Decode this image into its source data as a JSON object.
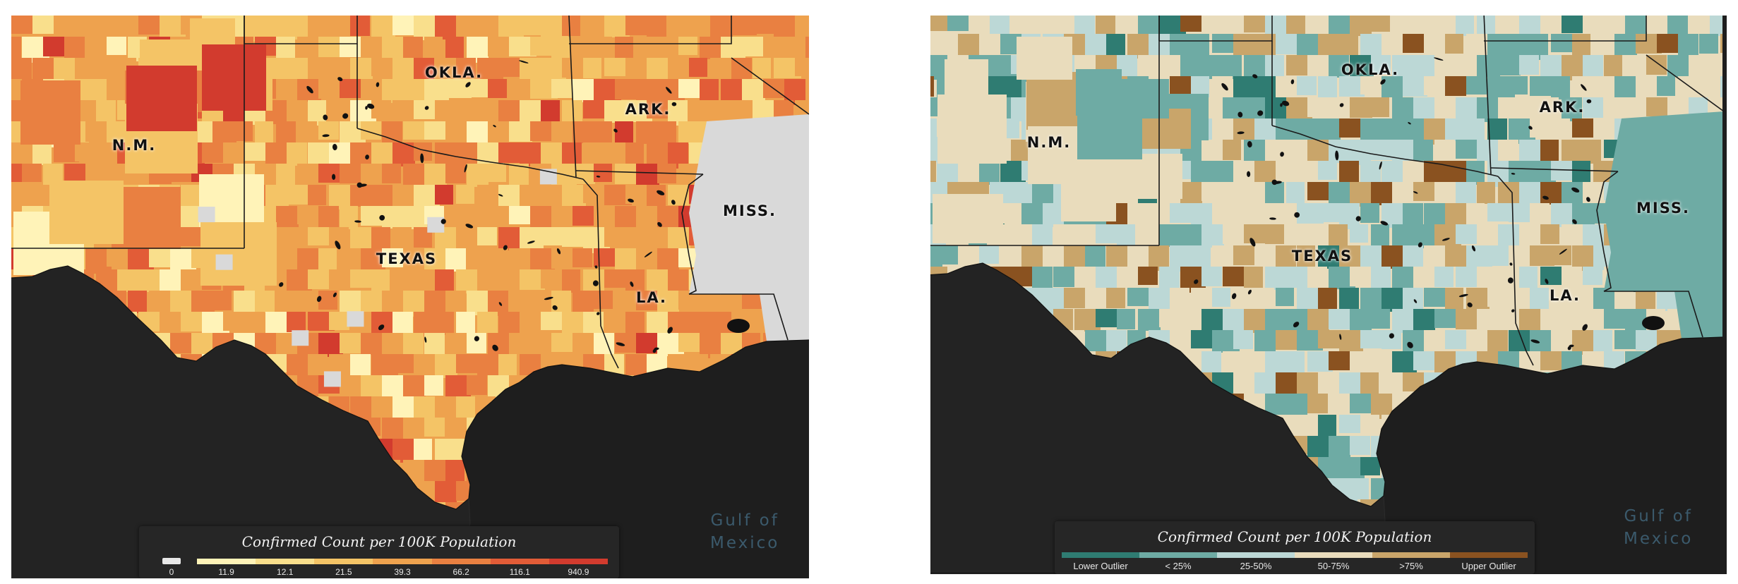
{
  "left_map": {
    "state_labels": {
      "nm": "N.M.",
      "okla": "OKLA.",
      "ark": "ARK.",
      "texas": "TEXAS",
      "miss": "MISS.",
      "la": "LA."
    },
    "gulf_label": [
      "Gulf of",
      "Mexico"
    ],
    "legend": {
      "title": "Confirmed Count per 100K Population",
      "zero_label": "0",
      "ticks": [
        "11.9",
        "12.1",
        "21.5",
        "39.3",
        "66.2",
        "116.1",
        "940.9"
      ],
      "colors": [
        "#fff3b8",
        "#f9df8c",
        "#f4c466",
        "#eea24e",
        "#e98041",
        "#e25c37",
        "#d23b2e"
      ]
    }
  },
  "right_map": {
    "state_labels": {
      "nm": "N.M.",
      "okla": "OKLA.",
      "ark": "ARK.",
      "texas": "TEXAS",
      "miss": "MISS.",
      "la": "LA."
    },
    "gulf_label": [
      "Gulf of",
      "Mexico"
    ],
    "legend": {
      "title": "Confirmed Count per 100K Population",
      "categories": [
        "Lower Outlier",
        "< 25%",
        "25-50%",
        "50-75%",
        ">75%",
        "Upper Outlier"
      ],
      "colors": [
        "#2f7c72",
        "#6eaba4",
        "#bcd8d6",
        "#e9dcbc",
        "#c9a56a",
        "#8a5220"
      ]
    }
  },
  "colors": {
    "ocean": "#1e1e1e",
    "land_dark": "#232323",
    "no_data": "#d9d9d9",
    "border": "#1a1a1a"
  }
}
